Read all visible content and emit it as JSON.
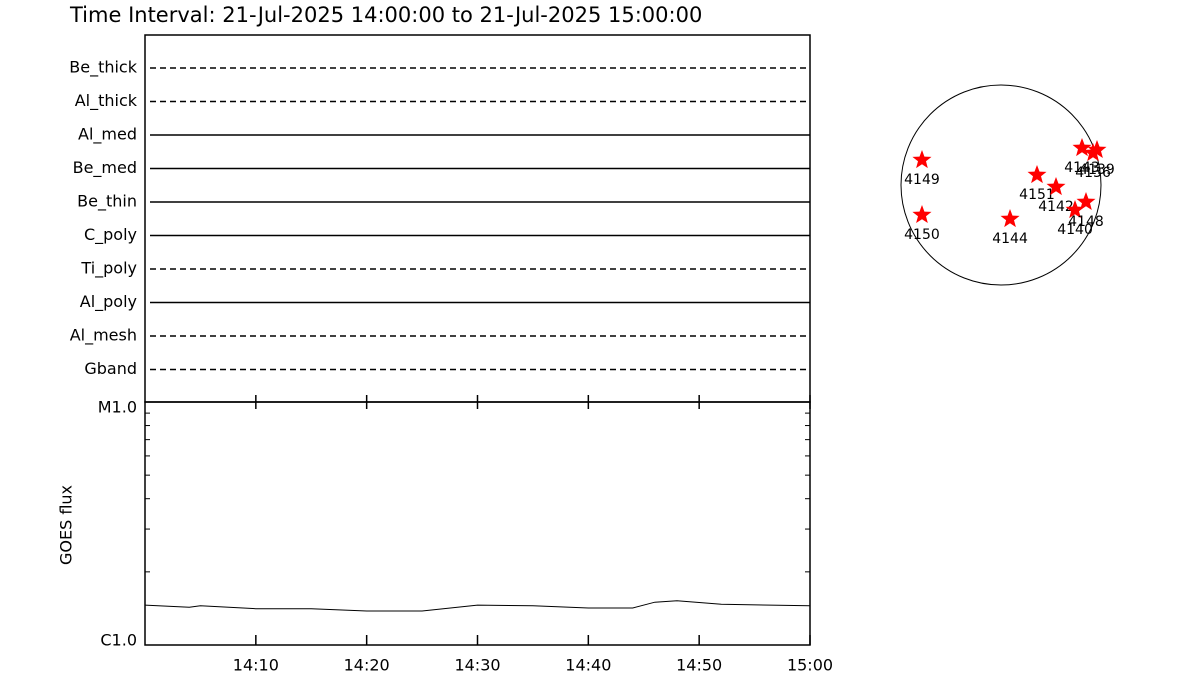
{
  "chart_data": [
    {
      "type": "timeline",
      "title": "Time Interval: 21-Jul-2025 14:00:00 to 21-Jul-2025 15:00:00",
      "categories": [
        "Be_thick",
        "Al_thick",
        "Al_med",
        "Be_med",
        "Be_thin",
        "C_poly",
        "Ti_poly",
        "Al_poly",
        "Al_mesh",
        "Gband"
      ],
      "styles": [
        "dashed",
        "dashed",
        "solid",
        "solid",
        "solid",
        "solid",
        "dashed",
        "solid",
        "dashed",
        "dashed"
      ],
      "color": "#000000"
    },
    {
      "type": "line",
      "ylabel": "GOES flux",
      "log_scale": true,
      "color": "#000000",
      "x": [
        "14:00",
        "14:04",
        "14:05",
        "14:10",
        "14:15",
        "14:20",
        "14:25",
        "14:30",
        "14:35",
        "14:40",
        "14:44",
        "14:46",
        "14:48",
        "14:52",
        "15:00"
      ],
      "values": [
        1.46e-06,
        1.43e-06,
        1.45e-06,
        1.41e-06,
        1.41e-06,
        1.38e-06,
        1.38e-06,
        1.46e-06,
        1.45e-06,
        1.42e-06,
        1.42e-06,
        1.5e-06,
        1.52e-06,
        1.47e-06,
        1.45e-06
      ],
      "xlim": [
        "14:00",
        "15:00"
      ],
      "xticks": [
        "14:10",
        "14:20",
        "14:30",
        "14:40",
        "14:50",
        "15:00"
      ],
      "ylim": [
        1e-06,
        1e-05
      ],
      "yticks": [
        {
          "value": 1e-06,
          "label": "C1.0"
        },
        {
          "value": 1e-05,
          "label": "M1.0"
        }
      ],
      "yminor_ticks": [
        2e-06,
        3e-06,
        4e-06,
        5e-06,
        6e-06,
        7e-06,
        8e-06,
        9e-06
      ]
    },
    {
      "type": "scatter",
      "color": "#ff0000",
      "xlim": [
        -1000,
        1000
      ],
      "ylim": [
        -1000,
        1000
      ],
      "labels": [
        "4149",
        "4150",
        "4144",
        "4151",
        "4142",
        "4140",
        "4148",
        "4143",
        "4139",
        "4136"
      ],
      "x": [
        -760,
        -760,
        87,
        346,
        529,
        712,
        817,
        779,
        923,
        885
      ],
      "y": [
        240,
        -288,
        -327,
        96,
        -19,
        -240,
        -163,
        356,
        337,
        308
      ]
    }
  ]
}
